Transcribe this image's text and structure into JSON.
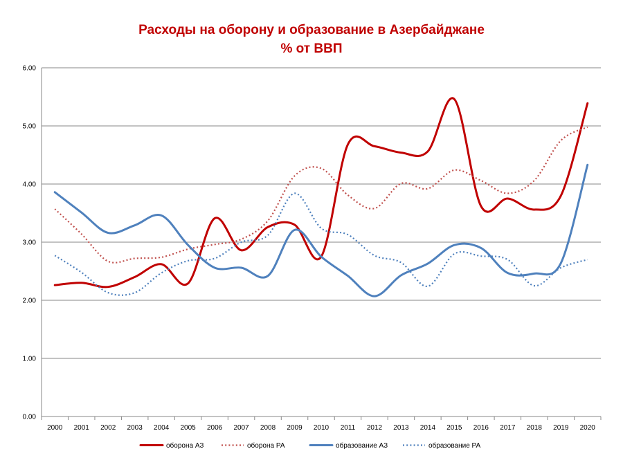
{
  "chart_data": {
    "type": "line",
    "title": "Расходы на оборону и образование в Азербайджане",
    "subtitle": "% от ВВП",
    "categories": [
      "2000",
      "2001",
      "2002",
      "2003",
      "2004",
      "2005",
      "2006",
      "2007",
      "2008",
      "2009",
      "2010",
      "2011",
      "2012",
      "2013",
      "2014",
      "2015",
      "2016",
      "2017",
      "2018",
      "2019",
      "2020"
    ],
    "yticks": [
      "0.00",
      "1.00",
      "2.00",
      "3.00",
      "4.00",
      "5.00",
      "6.00"
    ],
    "ylim": [
      0,
      6
    ],
    "grid": true,
    "legend_position": "bottom",
    "series": [
      {
        "name": "оборона АЗ",
        "color": "#c00000",
        "dash": "solid",
        "values": [
          2.26,
          2.3,
          2.23,
          2.4,
          2.62,
          2.29,
          3.41,
          2.86,
          3.26,
          3.3,
          2.75,
          4.68,
          4.65,
          4.54,
          4.56,
          5.46,
          3.62,
          3.75,
          3.56,
          3.8,
          5.39
        ]
      },
      {
        "name": "оборона РА",
        "color": "#c0504d",
        "dash": "dotted",
        "values": [
          3.57,
          3.14,
          2.67,
          2.72,
          2.74,
          2.88,
          2.96,
          3.05,
          3.37,
          4.14,
          4.27,
          3.81,
          3.58,
          4.01,
          3.92,
          4.24,
          4.06,
          3.84,
          4.06,
          4.75,
          4.98
        ]
      },
      {
        "name": "образование АЗ",
        "color": "#4f81bd",
        "dash": "solid",
        "values": [
          3.86,
          3.51,
          3.16,
          3.29,
          3.46,
          2.95,
          2.56,
          2.56,
          2.42,
          3.21,
          2.75,
          2.42,
          2.07,
          2.43,
          2.63,
          2.95,
          2.9,
          2.47,
          2.46,
          2.64,
          4.33
        ]
      },
      {
        "name": "образование РА",
        "color": "#4f81bd",
        "dash": "dotted",
        "values": [
          2.77,
          2.48,
          2.13,
          2.13,
          2.47,
          2.68,
          2.72,
          3.0,
          3.12,
          3.84,
          3.24,
          3.13,
          2.77,
          2.65,
          2.24,
          2.8,
          2.76,
          2.7,
          2.25,
          2.56,
          2.7
        ]
      }
    ]
  }
}
